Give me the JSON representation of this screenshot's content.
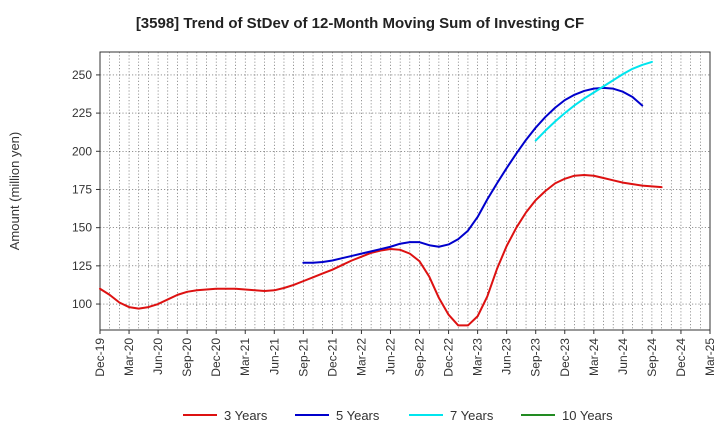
{
  "chart_data": {
    "type": "line",
    "title": "[3598]  Trend of StDev of 12-Month Moving Sum of Investing CF",
    "ylabel": "Amount (million yen)",
    "xlabel": "",
    "ylim": [
      83,
      265
    ],
    "yticks": [
      100,
      125,
      150,
      175,
      200,
      225,
      250
    ],
    "x_tick_labels": [
      "Dec-19",
      "Mar-20",
      "Jun-20",
      "Sep-20",
      "Dec-20",
      "Mar-21",
      "Jun-21",
      "Sep-21",
      "Dec-21",
      "Mar-22",
      "Jun-22",
      "Sep-22",
      "Dec-22",
      "Mar-23",
      "Jun-23",
      "Sep-23",
      "Dec-23",
      "Mar-24",
      "Jun-24",
      "Sep-24",
      "Dec-24",
      "Mar-25"
    ],
    "grid": true,
    "legend_position": "bottom",
    "colors": {
      "3 Years": "#dd1111",
      "5 Years": "#0000cc",
      "7 Years": "#00e5ee",
      "10 Years": "#228B22"
    },
    "series": [
      {
        "name": "3 Years",
        "start": "Dec-19",
        "values": [
          110,
          106,
          101,
          98,
          97,
          98,
          100,
          103,
          106,
          108,
          109,
          109.5,
          110,
          110,
          110,
          109.5,
          109,
          108.5,
          109,
          110.5,
          112.5,
          115,
          117.5,
          120,
          122.5,
          125.5,
          128.5,
          131,
          133.5,
          135,
          136,
          135.5,
          133,
          128,
          118,
          104,
          93,
          86,
          86,
          92,
          105,
          123,
          138,
          150,
          160,
          168,
          174,
          179,
          182,
          184,
          184.5,
          184,
          182.5,
          181,
          179.5,
          178.5,
          177.5,
          177,
          176.5
        ]
      },
      {
        "name": "5 Years",
        "start": "Sep-21",
        "values": [
          127,
          127,
          127.5,
          128.5,
          130,
          131.5,
          133,
          134.5,
          136,
          137.5,
          139.5,
          140.5,
          140.5,
          138.5,
          137.5,
          139,
          142.5,
          148,
          157,
          168.5,
          179,
          189,
          198.5,
          207.5,
          215.5,
          222.5,
          228.5,
          233.5,
          237,
          239.5,
          241,
          241.5,
          241,
          239,
          235.5,
          230
        ]
      },
      {
        "name": "7 Years",
        "start": "Sep-23",
        "values": [
          207,
          213.5,
          219.5,
          225,
          230,
          234.5,
          238.5,
          242.5,
          246.5,
          250.5,
          254,
          256.5,
          258.5
        ]
      },
      {
        "name": "10 Years",
        "start": "Sep-24",
        "values": []
      }
    ]
  }
}
